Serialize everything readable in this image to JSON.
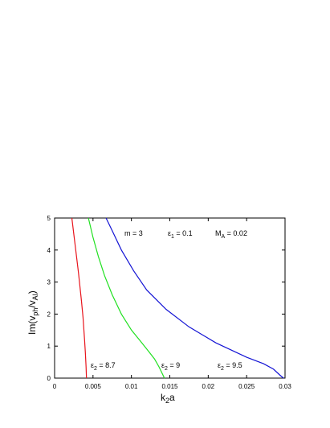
{
  "chart_data": {
    "type": "line",
    "xlabel": "k",
    "xlabel_sub": "2",
    "xlabel_tail": "a",
    "ylabel": "Im(v",
    "ylabel_sub1": "ph",
    "ylabel_mid": "/v",
    "ylabel_sub2": "Al",
    "ylabel_tail": ")",
    "xlim": [
      0,
      0.03
    ],
    "ylim": [
      0,
      5
    ],
    "x_ticks": [
      0,
      0.005,
      0.01,
      0.015,
      0.02,
      0.025,
      0.03
    ],
    "x_tick_labels": [
      "0",
      "0.005",
      "0.01",
      "0.015",
      "0.02",
      "0.025",
      "0.03"
    ],
    "y_ticks": [
      0,
      1,
      2,
      3,
      4,
      5
    ],
    "y_tick_labels": [
      "0",
      "1",
      "2",
      "3",
      "4",
      "5"
    ],
    "grid": false,
    "annotations": {
      "m": "m = 3",
      "eps1_a": "ε",
      "eps1_sub": "1",
      "eps1_b": " = 0.1",
      "ma_a": "M",
      "ma_sub": "A",
      "ma_b": " = 0.02"
    },
    "series": [
      {
        "label_a": "ε",
        "label_sub": "2",
        "label_b": " = 8.7",
        "color": "#e8141c",
        "x": [
          0.00225,
          0.00255,
          0.00285,
          0.0031,
          0.0033,
          0.0035,
          0.0037,
          0.0039,
          0.004,
          0.0041,
          0.00415
        ],
        "y": [
          5.0,
          4.4,
          3.8,
          3.3,
          2.85,
          2.4,
          1.9,
          1.2,
          0.8,
          0.35,
          0.0
        ]
      },
      {
        "label_a": "ε",
        "label_sub": "2",
        "label_b": " = 9",
        "color": "#20e020",
        "x": [
          0.0044,
          0.005,
          0.0057,
          0.0065,
          0.0075,
          0.0087,
          0.01,
          0.0112,
          0.0122,
          0.013,
          0.0136,
          0.014,
          0.0143
        ],
        "y": [
          5.0,
          4.4,
          3.8,
          3.2,
          2.6,
          2.0,
          1.5,
          1.15,
          0.85,
          0.6,
          0.35,
          0.15,
          0.0
        ]
      },
      {
        "label_a": "ε",
        "label_sub": "2",
        "label_b": " = 9.5",
        "color": "#1414d4",
        "x": [
          0.0067,
          0.0075,
          0.0087,
          0.0103,
          0.012,
          0.0145,
          0.0175,
          0.021,
          0.025,
          0.0272,
          0.0285,
          0.0293,
          0.0298
        ],
        "y": [
          5.0,
          4.6,
          4.0,
          3.35,
          2.75,
          2.15,
          1.6,
          1.1,
          0.65,
          0.45,
          0.28,
          0.1,
          0.0
        ]
      }
    ]
  }
}
